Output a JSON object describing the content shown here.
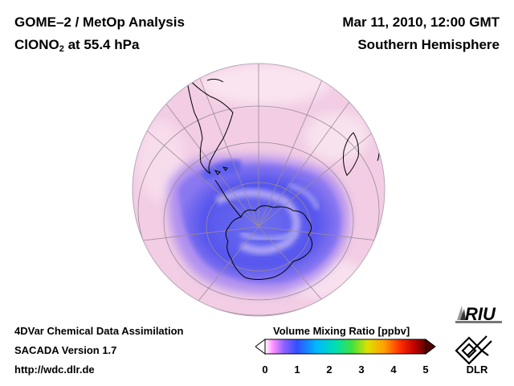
{
  "header": {
    "title_line1": "GOME–2 / MetOp Analysis",
    "title_line2_main": "ClONO",
    "title_line2_sub": "2",
    "title_line2_rest": " at 55.4 hPa",
    "date": "Mar 11, 2010, 12:00 GMT",
    "region": "Southern Hemisphere"
  },
  "footer": {
    "method": "4DVar Chemical Data Assimilation",
    "version": "SACADA Version 1.7",
    "url": "http://wdc.dlr.de"
  },
  "colorbar": {
    "title": "Volume Mixing Ratio [ppbv]",
    "ticks": [
      "0",
      "1",
      "2",
      "3",
      "4",
      "5"
    ],
    "range": [
      0,
      5
    ],
    "colors": [
      "#ffffff",
      "#ff80ff",
      "#8060ff",
      "#2050ff",
      "#00c0ff",
      "#00e0a0",
      "#40e040",
      "#e0e000",
      "#ffa000",
      "#ff3000",
      "#c00000",
      "#600000"
    ]
  },
  "logos": {
    "riu": "RIU",
    "dlr": "DLR"
  },
  "colors": {
    "globe_background": "#f2c9e2",
    "low_values": "#5a5cf0",
    "coastline": "#000000",
    "grid": "#9a8a9a"
  }
}
